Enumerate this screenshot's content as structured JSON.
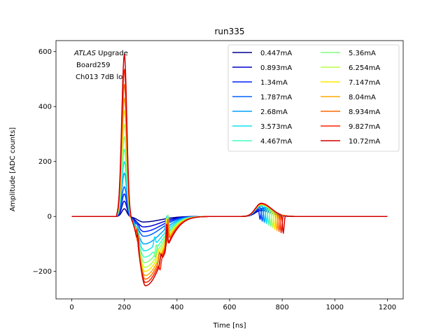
{
  "chart_data": {
    "type": "line",
    "title": "run335",
    "xlabel": "Time [ns]",
    "ylabel": "Amplitude [ADC counts]",
    "xlim": [
      -60,
      1260
    ],
    "ylim": [
      -300,
      640
    ],
    "xticks": [
      0,
      200,
      400,
      600,
      800,
      1000,
      1200
    ],
    "yticks": [
      -200,
      0,
      200,
      400,
      600
    ],
    "ytick_labels": [
      "−200",
      "0",
      "200",
      "400",
      "600"
    ],
    "grid": false,
    "legend_placement": "top-right",
    "legend_columns": 2,
    "annotation": {
      "line1_italic": "ATLAS",
      "line1_rest": " Upgrade",
      "line2": "Board259",
      "line3": "Ch013 7dB lo"
    },
    "x_start": 0,
    "x_end": 1200,
    "series": [
      {
        "name": "0.447mA",
        "color": "#00008f",
        "peak": 28,
        "undershoot": -20,
        "bump": 22,
        "glitch_pos": 0,
        "glitch_neg": 0
      },
      {
        "name": "0.893mA",
        "color": "#0000d0",
        "peak": 56,
        "undershoot": -38,
        "bump": 28,
        "glitch_pos": 0,
        "glitch_neg": 0
      },
      {
        "name": "1.34mA",
        "color": "#0020ff",
        "peak": 82,
        "undershoot": -55,
        "bump": 32,
        "glitch_pos": 20,
        "glitch_neg": -42
      },
      {
        "name": "1.787mA",
        "color": "#0060ff",
        "peak": 108,
        "undershoot": -72,
        "bump": 35,
        "glitch_pos": 30,
        "glitch_neg": -52
      },
      {
        "name": "2.68mA",
        "color": "#00a0ff",
        "peak": 158,
        "undershoot": -100,
        "bump": 38,
        "glitch_pos": 40,
        "glitch_neg": -58
      },
      {
        "name": "3.573mA",
        "color": "#10e0f0",
        "peak": 200,
        "undershoot": -125,
        "bump": 40,
        "glitch_pos": 52,
        "glitch_neg": -60
      },
      {
        "name": "4.467mA",
        "color": "#40ffb8",
        "peak": 245,
        "undershoot": -148,
        "bump": 41,
        "glitch_pos": 62,
        "glitch_neg": -62
      },
      {
        "name": "5.36mA",
        "color": "#80ff7c",
        "peak": 290,
        "undershoot": -168,
        "bump": 42,
        "glitch_pos": 70,
        "glitch_neg": -63
      },
      {
        "name": "6.254mA",
        "color": "#b8ff40",
        "peak": 335,
        "undershoot": -185,
        "bump": 43,
        "glitch_pos": 75,
        "glitch_neg": -63
      },
      {
        "name": "7.147mA",
        "color": "#ffe800",
        "peak": 385,
        "undershoot": -200,
        "bump": 44,
        "glitch_pos": 78,
        "glitch_neg": -64
      },
      {
        "name": "8.04mA",
        "color": "#ffa800",
        "peak": 430,
        "undershoot": -215,
        "bump": 45,
        "glitch_pos": 80,
        "glitch_neg": -64
      },
      {
        "name": "8.934mA",
        "color": "#ff6800",
        "peak": 480,
        "undershoot": -228,
        "bump": 46,
        "glitch_pos": 82,
        "glitch_neg": -64
      },
      {
        "name": "9.827mA",
        "color": "#ff2000",
        "peak": 535,
        "undershoot": -240,
        "bump": 47,
        "glitch_pos": 83,
        "glitch_neg": -65
      },
      {
        "name": "10.72mA",
        "color": "#d00000",
        "peak": 590,
        "undershoot": -252,
        "bump": 48,
        "glitch_pos": 84,
        "glitch_neg": -65
      }
    ]
  }
}
